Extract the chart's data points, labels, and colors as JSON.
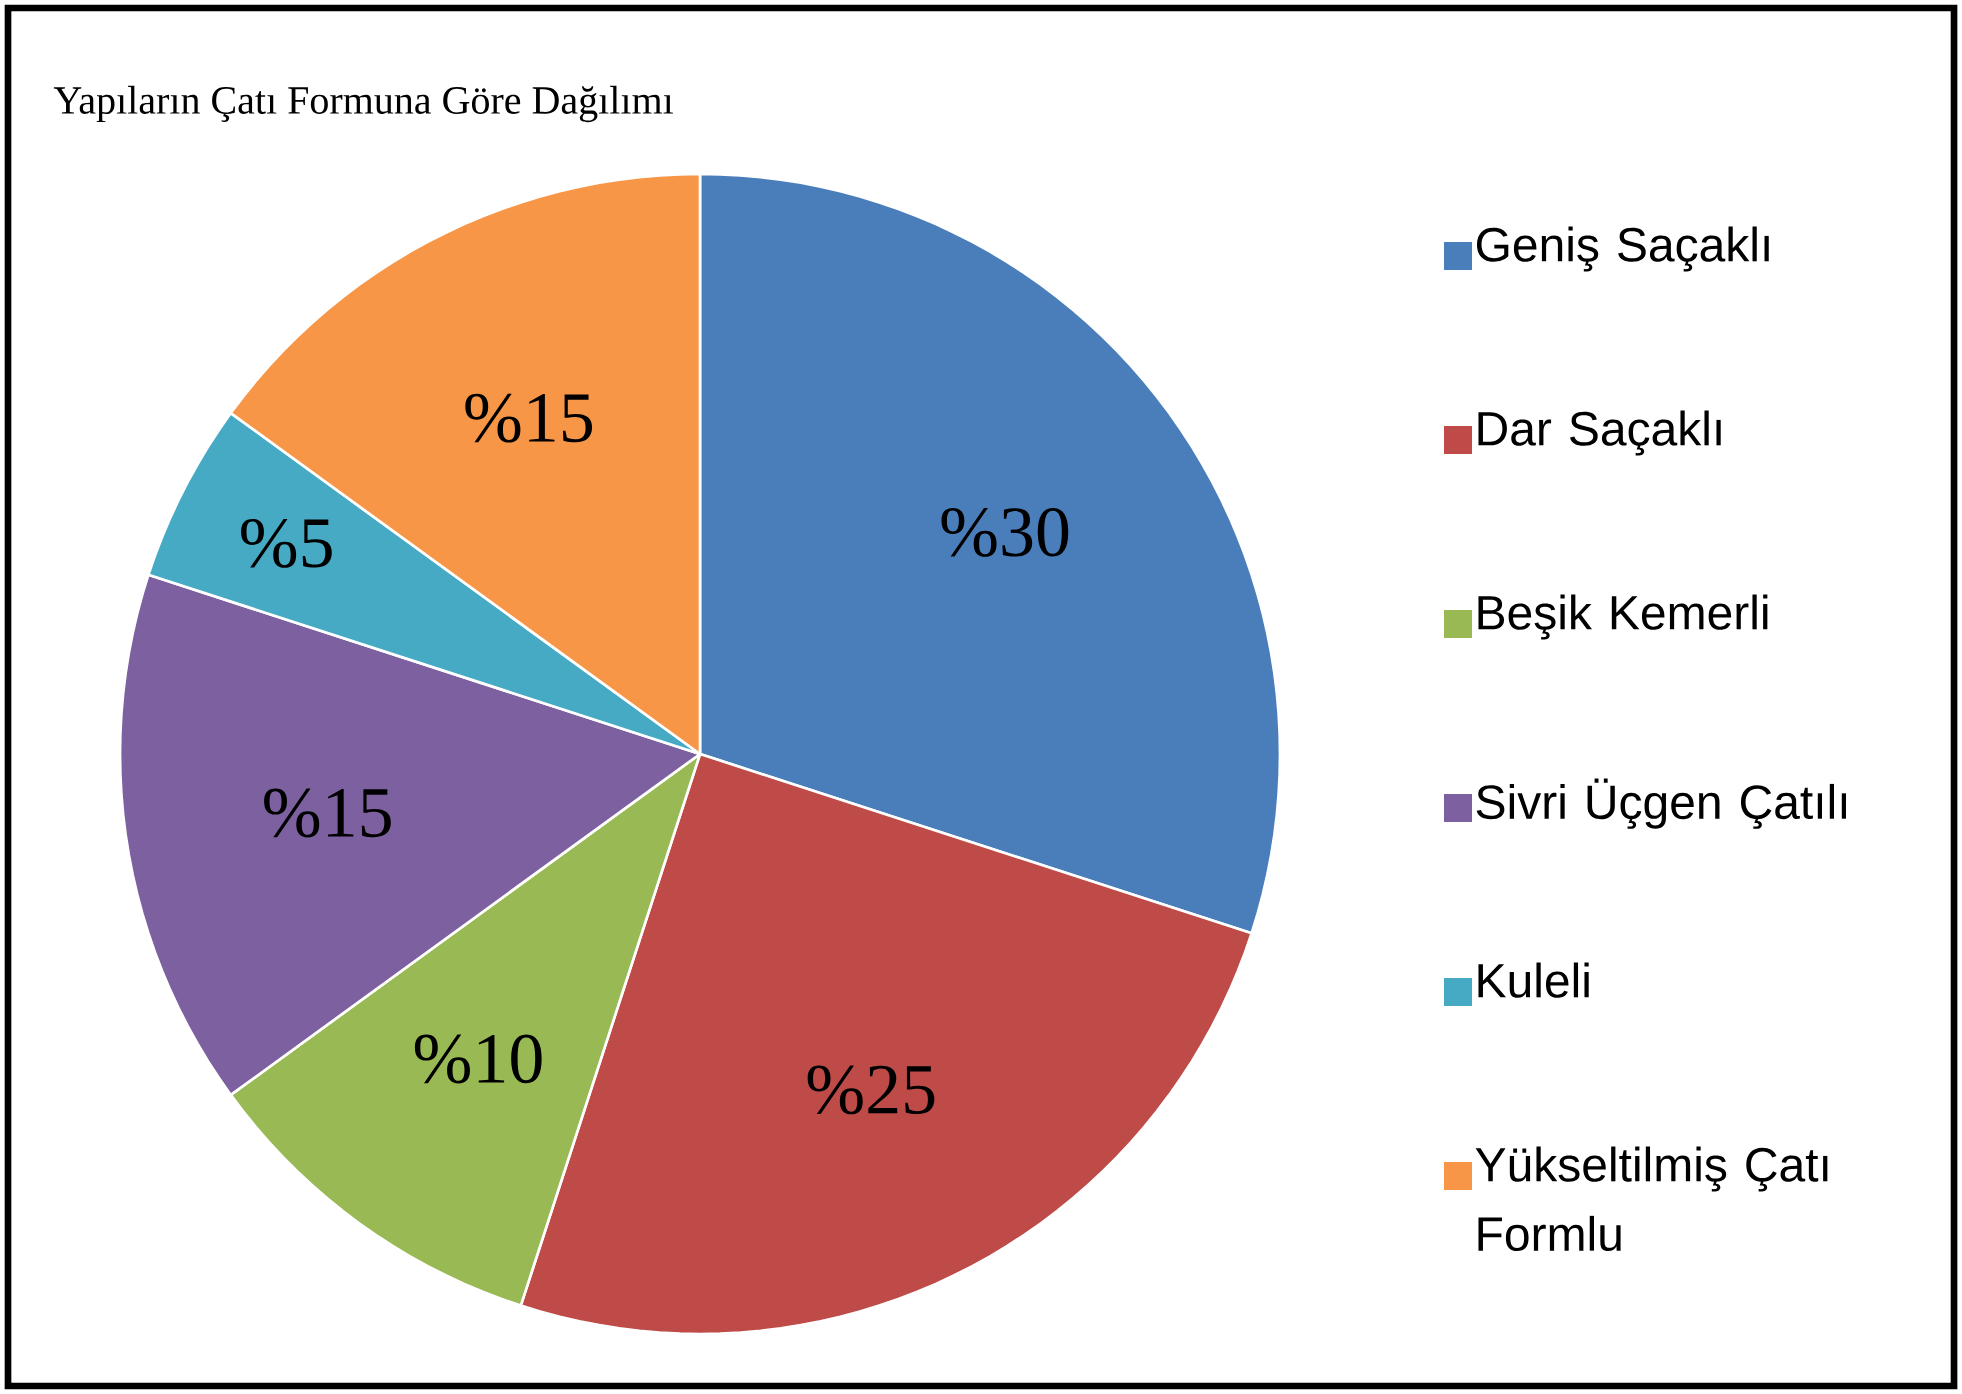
{
  "chart_data": {
    "type": "pie",
    "title": "Yapıların Çatı Formuna Göre Dağılımı",
    "categories": [
      "Geniş Saçaklı",
      "Dar Saçaklı",
      "Beşik Kemerli",
      "Sivri Üçgen Çatılı",
      "Kuleli",
      "Yükseltilmiş Çatı Formlu"
    ],
    "values": [
      30,
      25,
      10,
      15,
      5,
      15
    ],
    "value_labels": [
      "%30",
      "%25",
      "%10",
      "%15",
      "%5",
      "%15"
    ],
    "colors": [
      "#4a7ebb",
      "#be4b48",
      "#98b954",
      "#7d60a0",
      "#46aac5",
      "#f79646"
    ],
    "legend": "right"
  }
}
